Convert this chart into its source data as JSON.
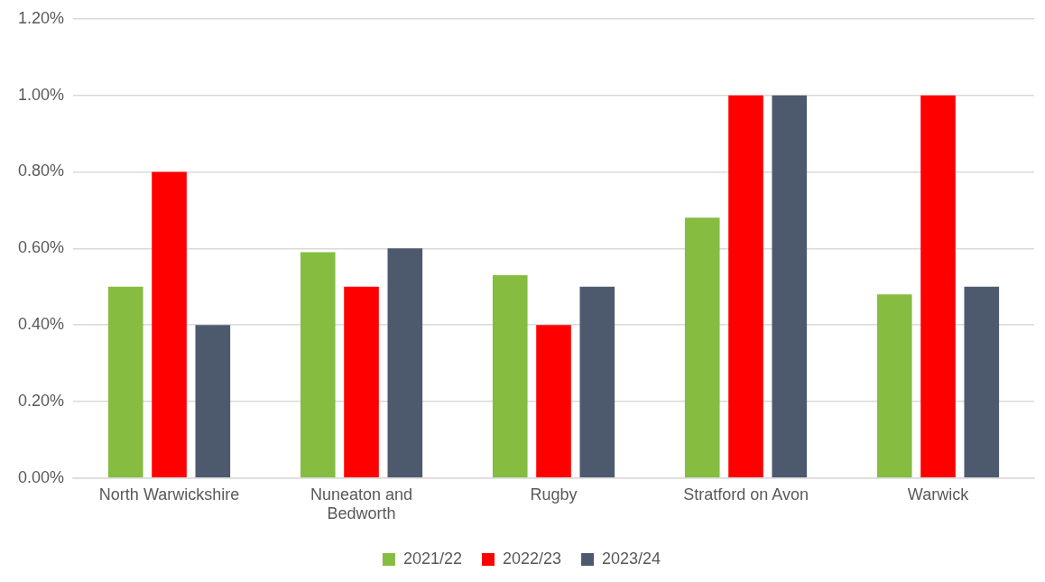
{
  "chart_data": {
    "type": "bar",
    "categories": [
      "North Warwickshire",
      "Nuneaton and Bedworth",
      "Rugby",
      "Stratford on Avon",
      "Warwick"
    ],
    "series": [
      {
        "name": "2021/22",
        "color": "#86bc40",
        "values": [
          0.5,
          0.59,
          0.53,
          0.68,
          0.48
        ]
      },
      {
        "name": "2022/23",
        "color": "#ff0000",
        "values": [
          0.8,
          0.5,
          0.4,
          1.0,
          1.0
        ]
      },
      {
        "name": "2023/24",
        "color": "#4d5a6e",
        "values": [
          0.4,
          0.6,
          0.5,
          1.0,
          0.5
        ]
      }
    ],
    "ylim": [
      0,
      1.2
    ],
    "yticks": [
      {
        "value": 0,
        "label": "0.00%"
      },
      {
        "value": 0.2,
        "label": "0.20%"
      },
      {
        "value": 0.4,
        "label": "0.40%"
      },
      {
        "value": 0.6,
        "label": "0.60%"
      },
      {
        "value": 0.8,
        "label": "0.80%"
      },
      {
        "value": 1.0,
        "label": "1.00%"
      },
      {
        "value": 1.2,
        "label": "1.20%"
      }
    ],
    "grid": "y",
    "legend": "bottom"
  }
}
